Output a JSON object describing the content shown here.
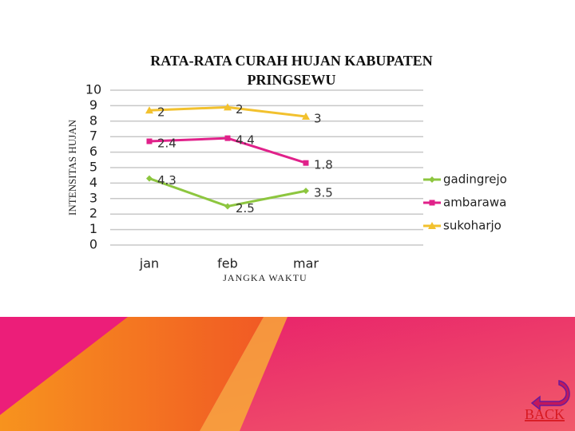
{
  "chart_data": {
    "type": "line",
    "stacked": true,
    "title": "RATA-RATA CURAH HUJAN KABUPATEN PRINGSEWU",
    "y_label": "INTENSITAS HUJAN",
    "x_label": "JANGKA WAKTU",
    "categories": [
      "jan",
      "feb",
      "mar"
    ],
    "series": [
      {
        "name": "gadingrejo",
        "color": "#8dc63f",
        "marker": "diamond",
        "values": [
          4.3,
          2.5,
          3.5
        ]
      },
      {
        "name": "ambarawa",
        "color": "#e0218a",
        "marker": "square",
        "values": [
          2.4,
          4.4,
          1.8
        ]
      },
      {
        "name": "sukoharjo",
        "color": "#f2c12e",
        "marker": "triangle",
        "values": [
          2,
          2,
          3
        ]
      }
    ],
    "ylim": [
      0,
      10
    ],
    "yticks": [
      0,
      1,
      2,
      3,
      4,
      5,
      6,
      7,
      8,
      9,
      10
    ],
    "grid": true,
    "legend": "right"
  },
  "back_button": "BACK"
}
